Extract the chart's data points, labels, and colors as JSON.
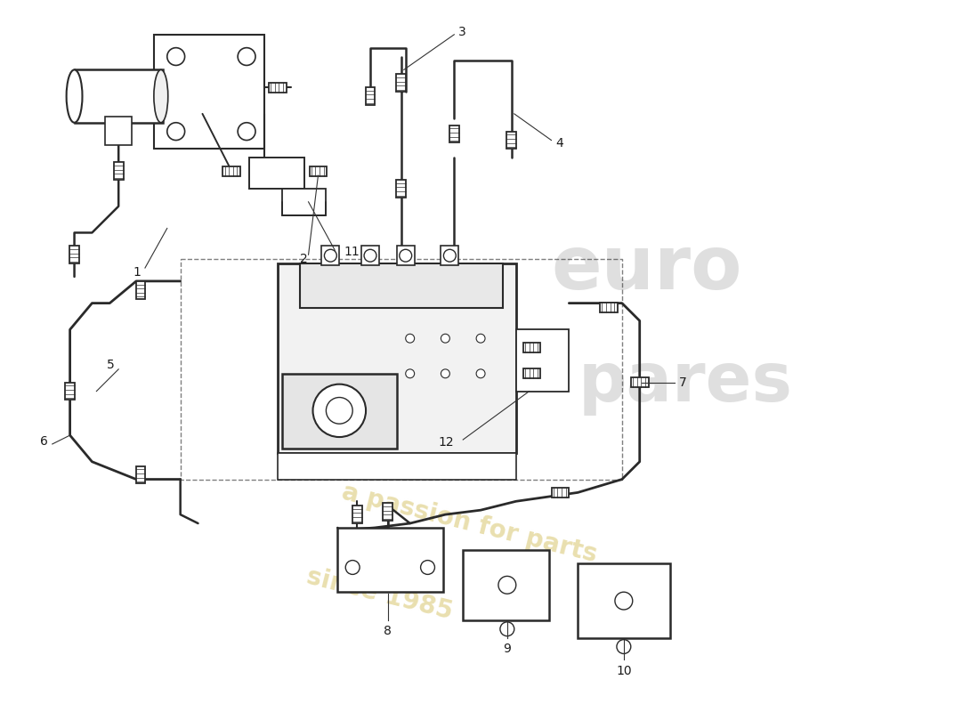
{
  "background_color": "#ffffff",
  "line_color": "#2a2a2a",
  "label_color": "#1a1a1a",
  "fig_width": 11.0,
  "fig_height": 8.0,
  "dpi": 100,
  "watermark": {
    "euro_text": "euro",
    "pares_text": "pares",
    "passion_text": "a passion for parts",
    "since_text": "since 1985",
    "wm_color": "#b0b0b0",
    "passion_color": "#d4c060",
    "wm_alpha": 0.4,
    "passion_alpha": 0.5
  }
}
